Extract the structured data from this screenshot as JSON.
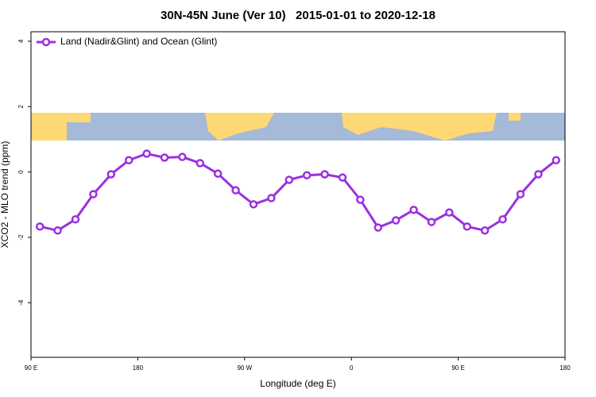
{
  "chart_data": {
    "type": "line",
    "title": "30N-45N June (Ver 10)   2015-01-01 to 2020-12-18",
    "x_label": "Longitude (deg E)",
    "y_label": "XCO2 - MLO trend (ppm)",
    "x": [
      97.5,
      112.5,
      127.5,
      142.5,
      157.5,
      172.5,
      187.5,
      202.5,
      217.5,
      232.5,
      247.5,
      262.5,
      277.5,
      292.5,
      307.5,
      322.5,
      337.5,
      352.5,
      367.5,
      382.5,
      397.5,
      412.5,
      427.5,
      442.5,
      457.5,
      472.5,
      487.5,
      502.5,
      517.5,
      532.5
    ],
    "series": [
      {
        "name": "Land (Nadir&Glint) and Ocean (Glint)",
        "color": "#9b30e0",
        "values": [
          -1.67,
          -1.79,
          -1.45,
          -0.68,
          -0.07,
          0.36,
          0.56,
          0.44,
          0.46,
          0.27,
          -0.05,
          -0.56,
          -0.99,
          -0.8,
          -0.24,
          -0.1,
          -0.07,
          -0.17,
          -0.85,
          -1.7,
          -1.48,
          -1.16,
          -1.53,
          -1.24,
          -1.67,
          -1.79,
          -1.45,
          -0.68,
          -0.07,
          0.36
        ]
      }
    ],
    "xlim": [
      90,
      540
    ],
    "xticks": [
      {
        "value": 90,
        "label": "90 E"
      },
      {
        "value": 180,
        "label": "180"
      },
      {
        "value": 270,
        "label": "90 W"
      },
      {
        "value": 360,
        "label": "0"
      },
      {
        "value": 450,
        "label": "90 E"
      },
      {
        "value": 540,
        "label": "180"
      }
    ],
    "ylim": [
      -5.67,
      4.29
    ],
    "yticks": [
      -4,
      -2,
      0,
      2,
      4
    ],
    "legend": "top-left"
  }
}
